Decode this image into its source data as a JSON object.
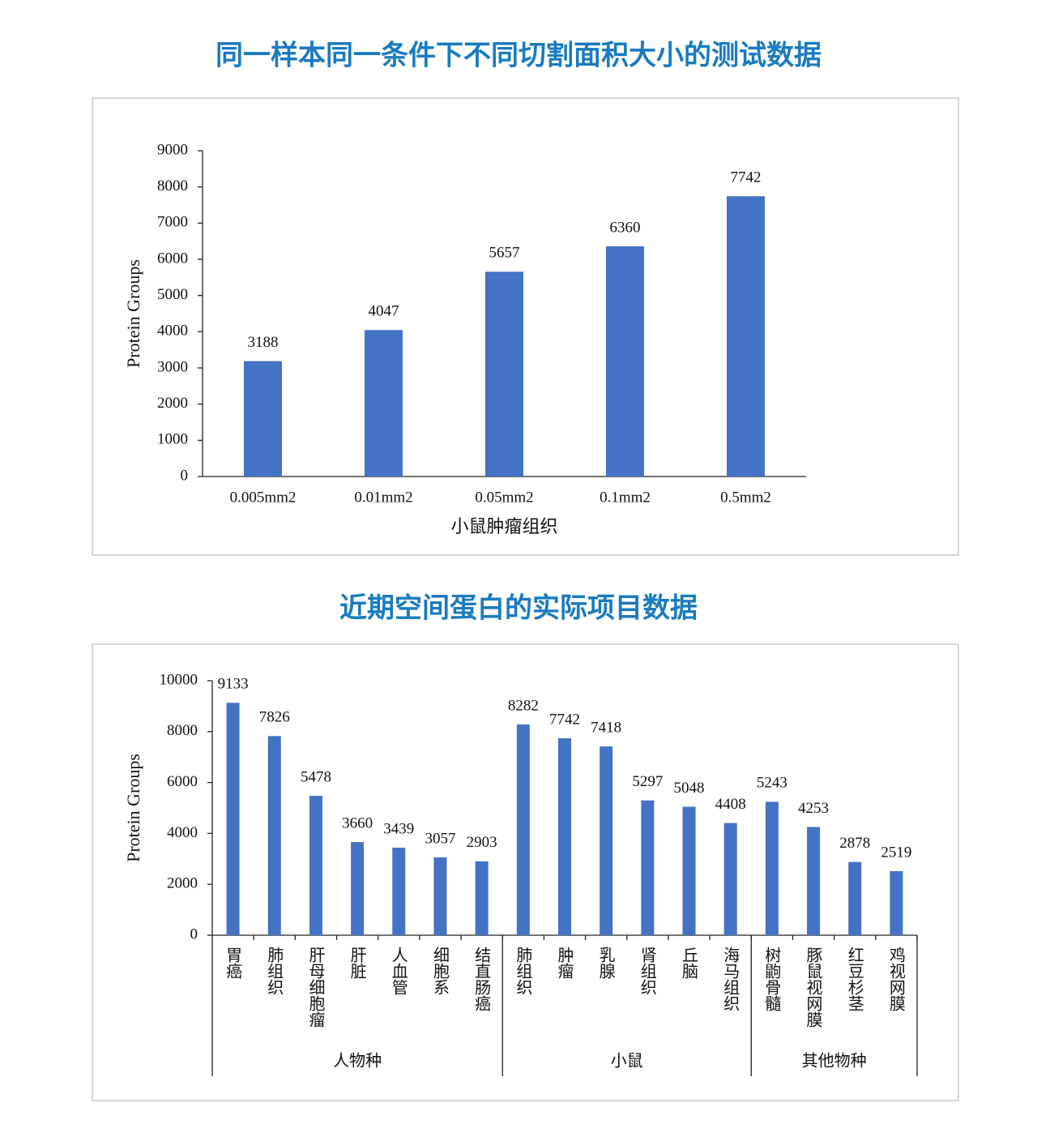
{
  "chart_data": [
    {
      "type": "bar",
      "title": "同一样本同一条件下不同切割面积大小的测试数据",
      "ylabel": "Protein Groups",
      "xlabel": "小鼠肿瘤组织",
      "categories": [
        "0.005mm2",
        "0.01mm2",
        "0.05mm2",
        "0.1mm2",
        "0.5mm2"
      ],
      "values": [
        3188,
        4047,
        5657,
        6360,
        7742
      ],
      "color": "#4472c4",
      "ylim": [
        0,
        9000
      ],
      "yticks": [
        0,
        1000,
        2000,
        3000,
        4000,
        5000,
        6000,
        7000,
        8000,
        9000
      ]
    },
    {
      "type": "grouped-bar",
      "title": "近期空间蛋白的实际项目数据",
      "ylabel": "Protein Groups",
      "color": "#4472c4",
      "groups": [
        {
          "name": "人物种",
          "categories": [
            "胃癌",
            "肺组织",
            "肝母细胞瘤",
            "肝脏",
            "人血管",
            "细胞系",
            "结直肠癌"
          ],
          "values": [
            9133,
            7826,
            5478,
            3660,
            3439,
            3057,
            2903
          ]
        },
        {
          "name": "小鼠",
          "categories": [
            "肺组织",
            "肿瘤",
            "乳腺",
            "肾组织",
            "丘脑",
            "海马组织"
          ],
          "values": [
            8282,
            7742,
            7418,
            5297,
            5048,
            4408
          ]
        },
        {
          "name": "其他物种",
          "categories": [
            "树鼩骨髓",
            "豚鼠视网膜",
            "红豆杉茎",
            "鸡视网膜"
          ],
          "values": [
            5243,
            4253,
            2878,
            2519
          ]
        }
      ],
      "ylim": [
        0,
        10000
      ],
      "yticks": [
        0,
        2000,
        4000,
        6000,
        8000,
        10000
      ]
    }
  ]
}
